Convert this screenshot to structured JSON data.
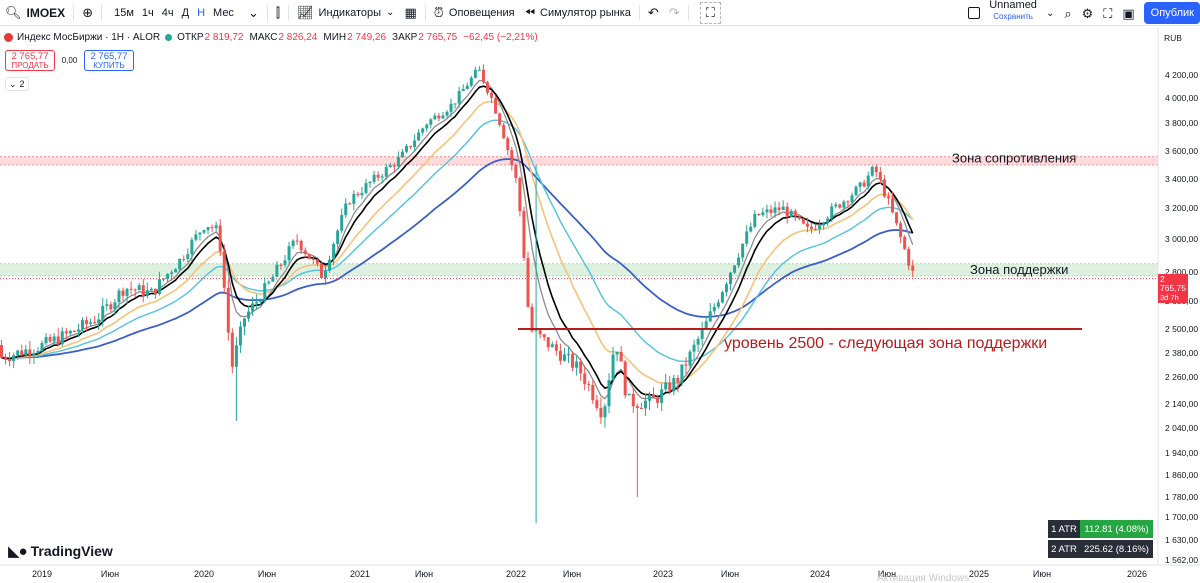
{
  "toolbar": {
    "symbol": "IMOEX",
    "timeframes": [
      "15м",
      "1ч",
      "4ч",
      "Д",
      "Н",
      "Мес"
    ],
    "active_timeframe": "Н",
    "indicators_label": "Индикаторы",
    "alerts_label": "Оповещения",
    "replay_label": "Симулятор рынка",
    "layout_name": "Unnamed",
    "save_label": "Сохранить",
    "publish_label": "Опублик"
  },
  "legend": {
    "title": "Индекс МосБиржи · 1Н · ALOR",
    "open_label": "ОТКР",
    "open": "2 819,72",
    "high_label": "МАКС",
    "high": "2 826,24",
    "low_label": "МИН",
    "low": "2 749,26",
    "close_label": "ЗАКР",
    "close": "2 765,75",
    "change": "−62,45 (−2,21%)"
  },
  "trade": {
    "sell_price": "2 765,77",
    "sell_label": "ПРОДАТЬ",
    "spread": "0,00",
    "buy_price": "2 765,77",
    "buy_label": "КУПИТЬ",
    "indicators_count": "2"
  },
  "atr": [
    {
      "label": "1 ATR",
      "value": "112.81 (4.08%)"
    },
    {
      "label": "2 ATR",
      "value": "225.62 (8.16%)"
    }
  ],
  "price_scale": {
    "currency": "RUB",
    "last_price": "2 765,75",
    "countdown": "3d 7h"
  },
  "branding": "TradingView",
  "ghost_text": "Активация Windows",
  "colors": {
    "up": "#26a69a",
    "down": "#ef5350",
    "ema_fast": "#000000",
    "ema_gray": "#8c8c8c",
    "ema_orange": "#f7c27a",
    "ema_teal": "#4fc3e0",
    "ema_blue": "#3b5fc7",
    "resistance": "#ffcdd2",
    "support": "#c8e6c9",
    "level_line": "#b71c1c"
  },
  "chart_data": {
    "type": "candlestick",
    "symbol": "IMOEX",
    "interval": "1W",
    "y_axis": {
      "min": 1562,
      "max": 4400,
      "ticks": [
        4200,
        4000,
        3800,
        3600,
        3400,
        3200,
        3000,
        2800,
        2650,
        2500,
        2380,
        2260,
        2140,
        2040,
        1940,
        1860,
        1780,
        1700,
        1630,
        1562
      ],
      "tick_labels": [
        "4 200,00",
        "4 000,00",
        "3 800,00",
        "3 600,00",
        "3 400,00",
        "3 200,00",
        "3 000,00",
        "2 800,00",
        "2 650,00",
        "2 500,00",
        "2 380,00",
        "2 260,00",
        "2 140,00",
        "2 040,00",
        "1 940,00",
        "1 860,00",
        "1 780,00",
        "1 700,00",
        "1 630,00",
        "1 562,00"
      ]
    },
    "x_axis": {
      "ticks": [
        "2019",
        "Июн",
        "2020",
        "Июн",
        "2021",
        "Июн",
        "2022",
        "Июн",
        "2023",
        "Июн",
        "2024",
        "Июн",
        "2025",
        "Июн",
        "2026"
      ]
    },
    "anchors": [
      [
        "2019-01",
        2420
      ],
      [
        "2019-03",
        2480
      ],
      [
        "2019-05",
        2560
      ],
      [
        "2019-07",
        2720
      ],
      [
        "2019-09",
        2690
      ],
      [
        "2019-11",
        2860
      ],
      [
        "2020-01",
        3100
      ],
      [
        "2020-02",
        3050
      ],
      [
        "2020-03",
        2300
      ],
      [
        "2020-04",
        2560
      ],
      [
        "2020-06",
        2750
      ],
      [
        "2020-08",
        3000
      ],
      [
        "2020-10",
        2780
      ],
      [
        "2020-12",
        3250
      ],
      [
        "2021-02",
        3400
      ],
      [
        "2021-04",
        3550
      ],
      [
        "2021-06",
        3800
      ],
      [
        "2021-08",
        3950
      ],
      [
        "2021-10",
        4250
      ],
      [
        "2021-11",
        4000
      ],
      [
        "2021-12",
        3700
      ],
      [
        "2022-01",
        3350
      ],
      [
        "2022-02",
        2500
      ],
      [
        "2022-04",
        2400
      ],
      [
        "2022-06",
        2300
      ],
      [
        "2022-08",
        2100
      ],
      [
        "2022-09",
        2450
      ],
      [
        "2022-10",
        2150
      ],
      [
        "2022-12",
        2150
      ],
      [
        "2023-02",
        2250
      ],
      [
        "2023-04",
        2500
      ],
      [
        "2023-06",
        2800
      ],
      [
        "2023-08",
        3150
      ],
      [
        "2023-10",
        3200
      ],
      [
        "2023-12",
        3050
      ],
      [
        "2024-02",
        3200
      ],
      [
        "2024-04",
        3350
      ],
      [
        "2024-05",
        3480
      ],
      [
        "2024-06",
        3250
      ],
      [
        "2024-07",
        3000
      ],
      [
        "2024-08",
        2766
      ]
    ],
    "extremes": {
      "2020_crash_low": 2070,
      "2021_high": 4292,
      "2022_spike_low": 1681,
      "2022_low": 1780
    },
    "zones": [
      {
        "label": "Зона сопротивления",
        "from": 3500,
        "to": 3560
      },
      {
        "label": "Зона поддержки",
        "from": 2780,
        "to": 2850
      }
    ],
    "level": {
      "label": "уровень 2500 - следующая зона поддержки",
      "value": 2500
    },
    "last_close": 2765.75
  }
}
